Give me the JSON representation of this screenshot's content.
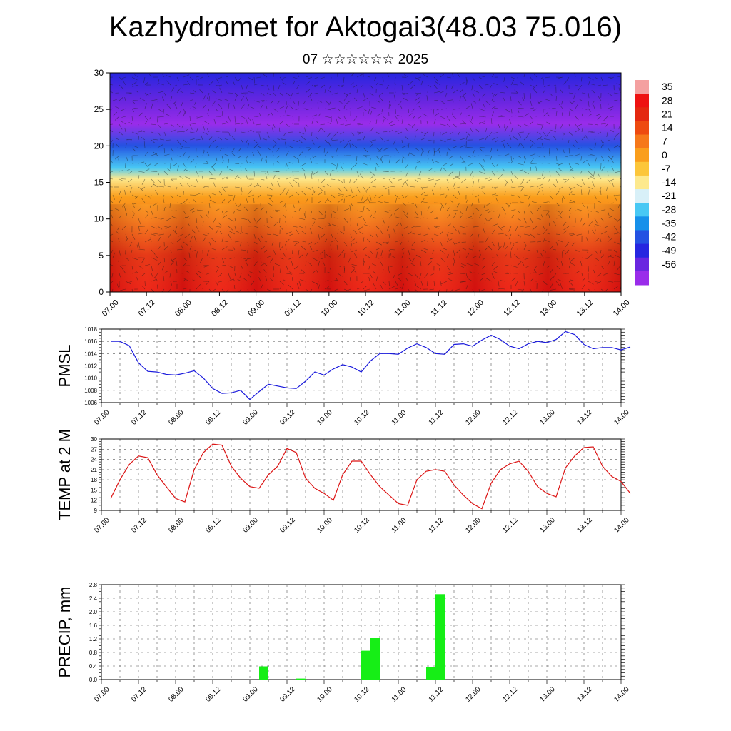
{
  "title": "Kazhydromet for Aktogai3(48.03 75.016)",
  "subtitle": "07 ☆☆☆☆☆☆ 2025",
  "chart_data": [
    {
      "type": "heatmap",
      "ylim": [
        0,
        30
      ],
      "yticks": [
        "0",
        "5",
        "10",
        "15",
        "20",
        "25",
        "30"
      ],
      "xticks": [
        "07.00",
        "07.12",
        "08.00",
        "08.12",
        "09.00",
        "09.12",
        "10.00",
        "10.12",
        "11.00",
        "11.12",
        "12.00",
        "12.12",
        "13.00",
        "13.12",
        "14.00"
      ],
      "colorbar_labels": [
        "35",
        "28",
        "21",
        "14",
        "7",
        "0",
        "-7",
        "-14",
        "-21",
        "-28",
        "-35",
        "-42",
        "-49",
        "-56"
      ],
      "colorbar_colors": [
        "#f4a0a0",
        "#ee1212",
        "#e42810",
        "#ee4a10",
        "#f6781a",
        "#fa9e1c",
        "#fcc63a",
        "#fde98e",
        "#d8f0f8",
        "#48c8f4",
        "#1690ea",
        "#2452e2",
        "#2626e0",
        "#6a26e0",
        "#9a2cea"
      ],
      "profile_temps": [
        {
          "alt": 0,
          "t": 34
        },
        {
          "alt": 5,
          "t": 24
        },
        {
          "alt": 10,
          "t": 12
        },
        {
          "alt": 13,
          "t": 5
        },
        {
          "alt": 15.5,
          "t": -10
        },
        {
          "alt": 17,
          "t": -24
        },
        {
          "alt": 20,
          "t": -40
        },
        {
          "alt": 23,
          "t": -57
        },
        {
          "alt": 26,
          "t": -55
        },
        {
          "alt": 30,
          "t": -48
        }
      ],
      "note_wind": "wind vectors overlaid"
    },
    {
      "type": "line",
      "ylabel": "PMSL",
      "ylim": [
        1006,
        1018
      ],
      "yticks": [
        "1006",
        "1008",
        "1010",
        "1012",
        "1014",
        "1016",
        "1018"
      ],
      "xticks": [
        "07.00",
        "07.12",
        "08.00",
        "08.12",
        "09.00",
        "09.12",
        "10.00",
        "10.12",
        "11.00",
        "11.12",
        "12.00",
        "12.12",
        "13.00",
        "13.12",
        "14.00"
      ],
      "line_color": "#1a1adc",
      "x_step_hours": 3,
      "values": [
        1016,
        1016,
        1015.3,
        1012.5,
        1011.1,
        1011,
        1010.6,
        1010.5,
        1010.8,
        1011.2,
        1010,
        1008.3,
        1007.5,
        1007.6,
        1008,
        1006.5,
        1007.8,
        1009,
        1008.7,
        1008.4,
        1008.3,
        1009.5,
        1011,
        1010.5,
        1011.5,
        1012.2,
        1011.8,
        1011,
        1012.8,
        1014,
        1014,
        1013.9,
        1014.9,
        1015.6,
        1015,
        1014,
        1013.9,
        1015.5,
        1015.6,
        1015.2,
        1016.2,
        1017,
        1016.3,
        1015.2,
        1014.8,
        1015.6,
        1016,
        1015.8,
        1016.3,
        1017.6,
        1017.1,
        1015.5,
        1014.8,
        1015,
        1015,
        1014.6,
        1015.1
      ]
    },
    {
      "type": "line",
      "ylabel": "TEMP at 2 M",
      "ylim": [
        9,
        30
      ],
      "yticks": [
        "9",
        "12",
        "15",
        "18",
        "21",
        "24",
        "27",
        "30"
      ],
      "xticks": [
        "07.00",
        "07.12",
        "08.00",
        "08.12",
        "09.00",
        "09.12",
        "10.00",
        "10.12",
        "11.00",
        "11.12",
        "12.00",
        "12.12",
        "13.00",
        "13.12",
        "14.00"
      ],
      "line_color": "#dc1414",
      "x_step_hours": 3,
      "values": [
        12.5,
        18,
        22.5,
        25,
        24.5,
        19.5,
        16,
        12.5,
        11.5,
        21,
        26,
        28.5,
        28.2,
        22,
        18.5,
        16,
        15.5,
        19.5,
        22,
        27.2,
        26,
        18.5,
        15.5,
        14,
        12,
        19.5,
        23.5,
        23.5,
        19.5,
        16,
        13.5,
        11,
        10.5,
        18,
        20.5,
        21,
        20.5,
        16.5,
        13.5,
        11,
        9.5,
        17,
        21,
        22.7,
        23.5,
        20.5,
        16,
        14,
        13,
        21.5,
        25,
        27.5,
        27.7,
        22,
        19,
        17.5,
        14
      ]
    },
    {
      "type": "bar",
      "ylabel": "PRECIP, mm",
      "ylim": [
        0,
        2.8
      ],
      "yticks": [
        "0.0",
        "0.4",
        "0.8",
        "1.2",
        "1.6",
        "2.0",
        "2.4",
        "2.8"
      ],
      "xticks": [
        "07.00",
        "07.12",
        "08.00",
        "08.12",
        "09.00",
        "09.12",
        "10.00",
        "10.12",
        "11.00",
        "11.12",
        "12.00",
        "12.12",
        "13.00",
        "13.12",
        "14.00"
      ],
      "bar_color": "#16ee16",
      "bar_width_hours": 3,
      "bars": [
        {
          "hour": 51,
          "value": 0.39
        },
        {
          "hour": 63,
          "value": 0.03
        },
        {
          "hour": 84,
          "value": 0.85
        },
        {
          "hour": 87,
          "value": 1.22
        },
        {
          "hour": 105,
          "value": 0.36
        },
        {
          "hour": 108,
          "value": 2.52
        }
      ]
    }
  ]
}
